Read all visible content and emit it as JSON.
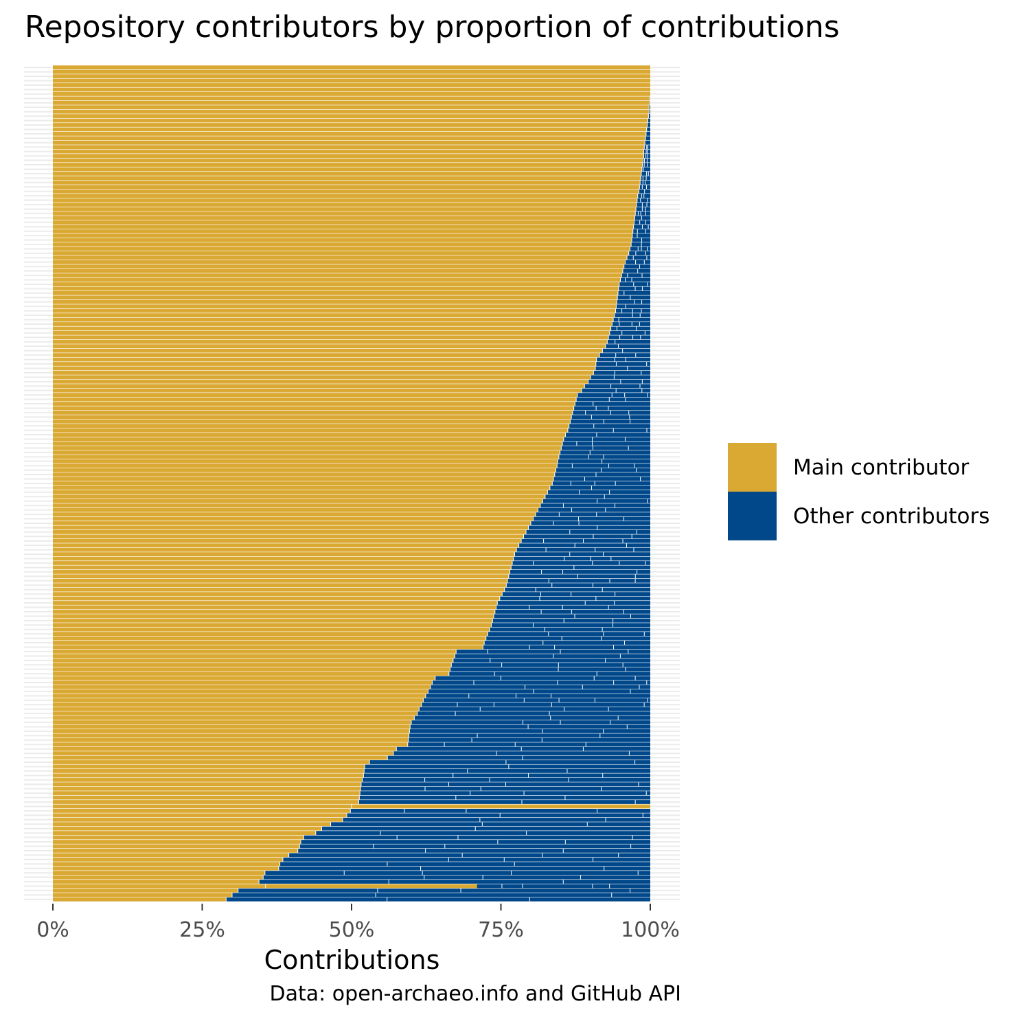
{
  "chart_data": {
    "type": "bar",
    "orientation": "horizontal",
    "stacked": true,
    "title": "Repository contributors by proportion of contributions",
    "xlabel": "Contributions",
    "ylabel": "",
    "caption": "Data: open-archaeo.info and GitHub API",
    "xlim": [
      0,
      1
    ],
    "x_ticks": [
      0,
      0.25,
      0.5,
      0.75,
      1
    ],
    "x_tick_labels": [
      "0%",
      "25%",
      "50%",
      "75%",
      "100%"
    ],
    "y_tick_labels": [],
    "grid": "horizontal",
    "legend_position": "right",
    "series": [
      {
        "name": "Main contributor",
        "color": "#DAA934"
      },
      {
        "name": "Other contributors",
        "color": "#00488A"
      }
    ],
    "main_share": [
      1.0,
      1.0,
      1.0,
      1.0,
      1.0,
      1.0,
      1.0,
      0.999,
      0.999,
      0.998,
      0.998,
      0.997,
      0.996,
      0.995,
      0.994,
      0.993,
      0.992,
      0.991,
      0.99,
      0.989,
      0.989,
      0.988,
      0.987,
      0.986,
      0.985,
      0.984,
      0.983,
      0.982,
      0.981,
      0.979,
      0.978,
      0.977,
      0.976,
      0.975,
      0.974,
      0.973,
      0.972,
      0.971,
      0.97,
      0.969,
      0.968,
      0.966,
      0.964,
      0.961,
      0.958,
      0.956,
      0.954,
      0.952,
      0.95,
      0.948,
      0.947,
      0.946,
      0.945,
      0.944,
      0.943,
      0.942,
      0.94,
      0.938,
      0.936,
      0.934,
      0.932,
      0.93,
      0.928,
      0.925,
      0.92,
      0.915,
      0.91,
      0.909,
      0.908,
      0.905,
      0.9,
      0.896,
      0.89,
      0.885,
      0.878,
      0.876,
      0.874,
      0.872,
      0.87,
      0.868,
      0.866,
      0.864,
      0.862,
      0.858,
      0.855,
      0.853,
      0.851,
      0.849,
      0.847,
      0.845,
      0.844,
      0.842,
      0.84,
      0.838,
      0.836,
      0.832,
      0.828,
      0.824,
      0.82,
      0.816,
      0.812,
      0.808,
      0.804,
      0.8,
      0.796,
      0.792,
      0.788,
      0.784,
      0.78,
      0.776,
      0.773,
      0.771,
      0.769,
      0.767,
      0.765,
      0.763,
      0.761,
      0.759,
      0.756,
      0.752,
      0.748,
      0.744,
      0.742,
      0.74,
      0.738,
      0.736,
      0.734,
      0.731,
      0.728,
      0.725,
      0.722,
      0.72,
      0.675,
      0.673,
      0.67,
      0.667,
      0.665,
      0.663,
      0.64,
      0.635,
      0.632,
      0.628,
      0.624,
      0.62,
      0.617,
      0.613,
      0.61,
      0.605,
      0.6,
      0.598,
      0.597,
      0.596,
      0.595,
      0.594,
      0.575,
      0.57,
      0.56,
      0.53,
      0.522,
      0.521,
      0.52,
      0.518,
      0.516,
      0.515,
      0.514,
      0.513,
      0.512,
      1.0,
      0.498,
      0.492,
      0.485,
      0.465,
      0.45,
      0.44,
      0.42,
      0.415,
      0.413,
      0.41,
      0.395,
      0.385,
      0.38,
      0.378,
      0.355,
      0.352,
      0.345,
      0.34,
      0.31,
      0.3,
      0.29
    ],
    "mixed_bars": [
      {
        "row": 167,
        "main_segments": [
          [
            0,
            0.5
          ],
          [
            0.5,
            1.0
          ]
        ]
      },
      {
        "row": 185,
        "main_segments": [
          [
            0,
            0.356
          ],
          [
            0.356,
            0.71
          ]
        ]
      }
    ]
  }
}
